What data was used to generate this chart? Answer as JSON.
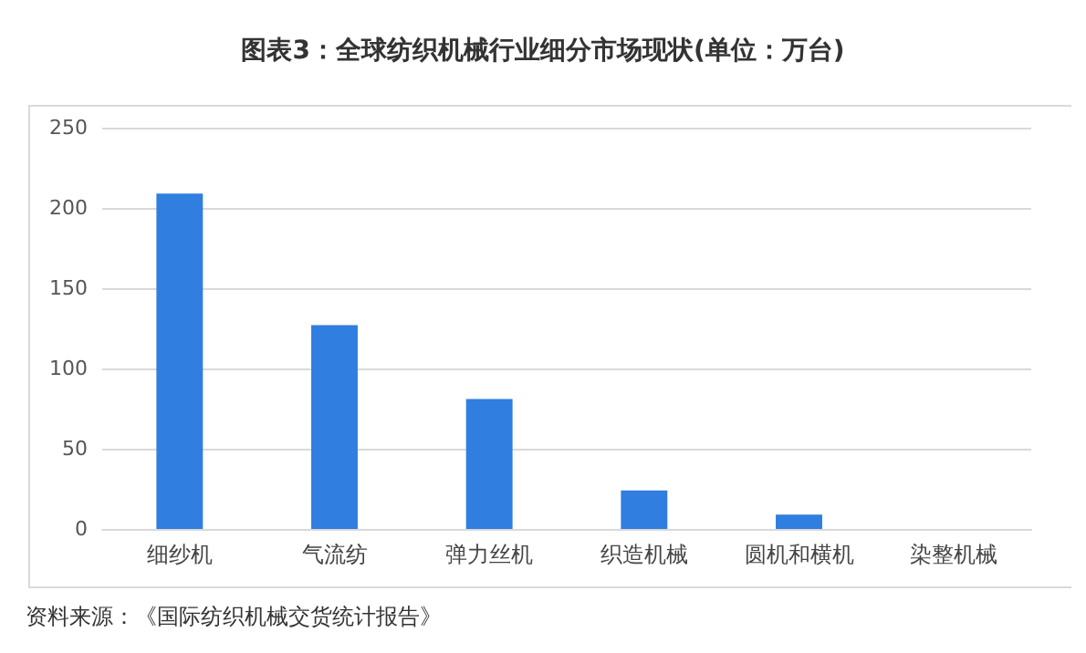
{
  "chart_data": {
    "type": "bar",
    "title": "图表3：全球纺织机械行业细分市场现状(单位：万台)",
    "categories": [
      "细纱机",
      "气流纺",
      "弹力丝机",
      "织造机械",
      "圆机和横机",
      "染整机械"
    ],
    "values": [
      209,
      127,
      81,
      24,
      9,
      0
    ],
    "color": "#2f7ee0",
    "ylim": [
      0,
      250
    ],
    "yticks": [
      0,
      50,
      100,
      150,
      200,
      250
    ],
    "grid": "y",
    "annotations": [
      "资料来源：《国际纺织机械交货统计报告》"
    ]
  }
}
